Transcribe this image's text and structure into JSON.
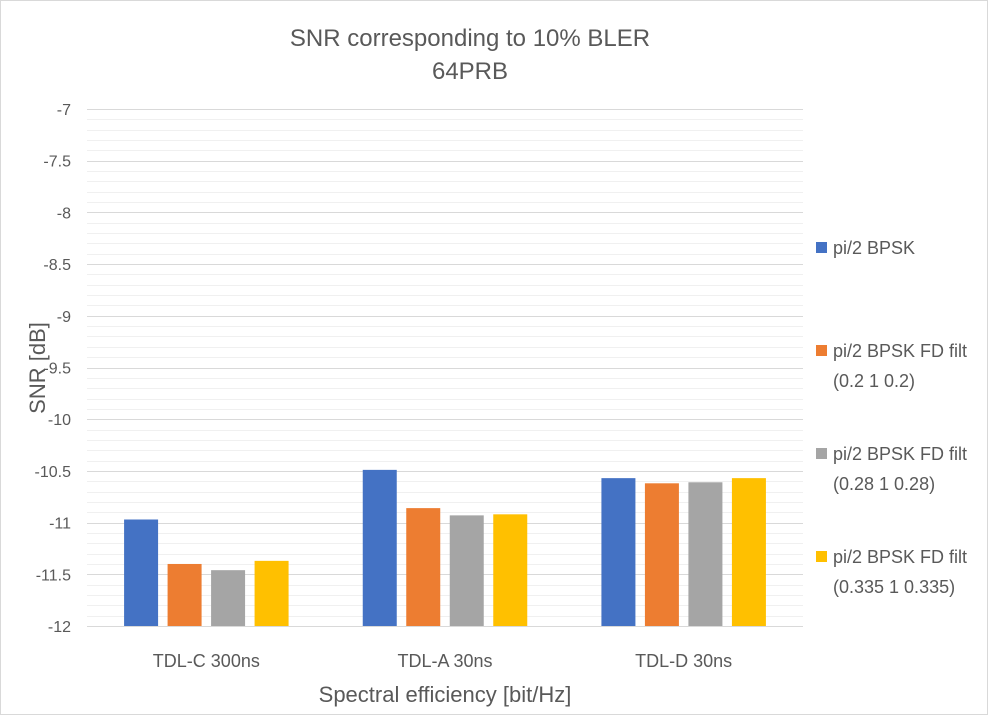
{
  "chart_data": {
    "type": "bar",
    "title": "SNR corresponding to 10% BLER",
    "subtitle": "64PRB",
    "xlabel": "Spectral efficiency [bit/Hz]",
    "ylabel": "SNR [dB]",
    "ylim": [
      -12,
      -7
    ],
    "ytick_step": 0.5,
    "ytick_labels": [
      "-12",
      "-11.5",
      "-11",
      "-10.5",
      "-10",
      "-9.5",
      "-9",
      "-8.5",
      "-8",
      "-7.5",
      "-7"
    ],
    "grid": true,
    "legend_position": "right",
    "categories": [
      "TDL-C 300ns",
      "TDL-A 30ns",
      "TDL-D 30ns"
    ],
    "series": [
      {
        "name": "pi/2 BPSK",
        "name_lines": [
          "pi/2 BPSK"
        ],
        "color": "#4472C4",
        "values": [
          -10.97,
          -10.49,
          -10.57
        ]
      },
      {
        "name": "pi/2 BPSK FD filt (0.2 1 0.2)",
        "name_lines": [
          "pi/2 BPSK FD filt",
          "(0.2 1 0.2)"
        ],
        "color": "#ED7D31",
        "values": [
          -11.4,
          -10.86,
          -10.62
        ]
      },
      {
        "name": "pi/2 BPSK FD filt (0.28 1 0.28)",
        "name_lines": [
          "pi/2 BPSK FD filt",
          "(0.28 1 0.28)"
        ],
        "color": "#A5A5A5",
        "values": [
          -11.46,
          -10.93,
          -10.61
        ]
      },
      {
        "name": "pi/2 BPSK FD filt (0.335 1 0.335)",
        "name_lines": [
          "pi/2 BPSK FD filt",
          "(0.335 1 0.335)"
        ],
        "color": "#FFC000",
        "values": [
          -11.37,
          -10.92,
          -10.57
        ]
      }
    ]
  }
}
